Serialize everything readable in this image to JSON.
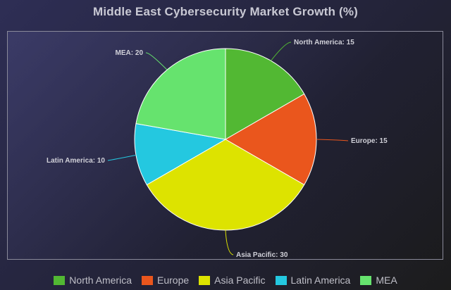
{
  "chart_data": {
    "type": "pie",
    "title": "Middle East Cybersecurity Market Growth (%)",
    "categories": [
      "North America",
      "Europe",
      "Asia Pacific",
      "Latin America",
      "MEA"
    ],
    "values": [
      15,
      15,
      30,
      10,
      20
    ],
    "colors": [
      "#52b833",
      "#ea561d",
      "#dde300",
      "#24c8e0",
      "#66e36e"
    ],
    "slice_labels": [
      "North America: 15",
      "Europe: 15",
      "Asia Pacific: 30",
      "Latin America: 10",
      "MEA: 20"
    ],
    "legend_position": "bottom"
  }
}
